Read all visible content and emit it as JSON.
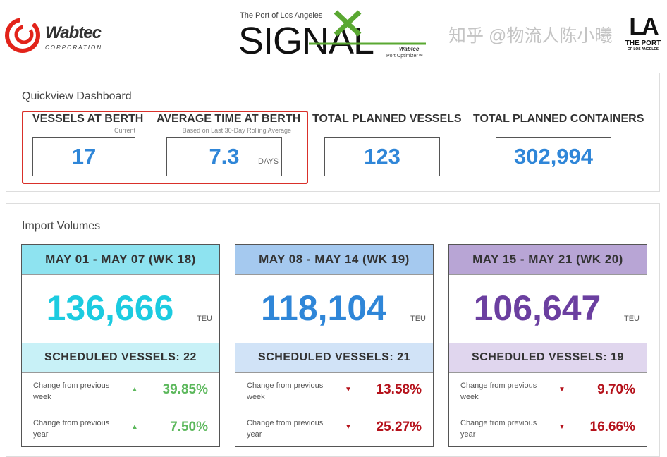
{
  "header": {
    "wabtec": {
      "name": "Wabtec",
      "sub": "CORPORATION"
    },
    "signal": {
      "kicker": "The Port of Los Angeles",
      "title": "SIGNAL",
      "powered": "Wabtec",
      "product": "Port Optimizer™"
    },
    "la": {
      "mark": "LA",
      "line1": "THE PORT",
      "line2": "OF LOS ANGELES"
    }
  },
  "quickview": {
    "title": "Quickview Dashboard",
    "kpis": [
      {
        "label": "VESSELS AT BERTH",
        "sub": "Current",
        "value": "17",
        "unit": ""
      },
      {
        "label": "AVERAGE TIME AT BERTH",
        "sub": "Based on Last 30-Day Rolling Average",
        "value": "7.3",
        "unit": "DAYS"
      },
      {
        "label": "TOTAL PLANNED VESSELS",
        "sub": "",
        "value": "123",
        "unit": ""
      },
      {
        "label": "TOTAL PLANNED CONTAINERS",
        "sub": "",
        "value": "302,994",
        "unit": ""
      }
    ]
  },
  "imports": {
    "title": "Import Volumes",
    "cards": [
      {
        "week": "MAY 01 - MAY 07 (WK 18)",
        "teu": "136,666",
        "unit": "TEU",
        "scheduled": "SCHEDULED VESSELS: 22",
        "head_color": "#8ee3f0",
        "sv_color": "#c8f1f7",
        "num_color": "#1ccbe0",
        "changes": [
          {
            "label": "Change from previous week",
            "dir": "up",
            "value": "39.85%"
          },
          {
            "label": "Change from previous year",
            "dir": "up",
            "value": "7.50%"
          }
        ]
      },
      {
        "week": "MAY 08 - MAY 14 (WK 19)",
        "teu": "118,104",
        "unit": "TEU",
        "scheduled": "SCHEDULED VESSELS: 21",
        "head_color": "#a5c9ef",
        "sv_color": "#d1e3f7",
        "num_color": "#2f86d8",
        "changes": [
          {
            "label": "Change from previous week",
            "dir": "down",
            "value": "13.58%"
          },
          {
            "label": "Change from previous year",
            "dir": "down",
            "value": "25.27%"
          }
        ]
      },
      {
        "week": "MAY 15 - MAY 21 (WK 20)",
        "teu": "106,647",
        "unit": "TEU",
        "scheduled": "SCHEDULED VESSELS: 19",
        "head_color": "#b8a5d5",
        "sv_color": "#e0d6ee",
        "num_color": "#6b3fa0",
        "changes": [
          {
            "label": "Change from previous week",
            "dir": "down",
            "value": "9.70%"
          },
          {
            "label": "Change from previous year",
            "dir": "down",
            "value": "16.66%"
          }
        ]
      }
    ]
  },
  "watermark": "知乎 @物流人陈小曦",
  "colors": {
    "highlight": "#d9302a",
    "up": "#5cb85c",
    "down": "#b5121b",
    "kpi": "#2f86d8"
  }
}
